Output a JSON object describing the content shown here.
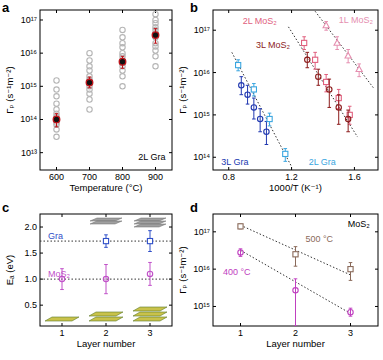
{
  "chart_data": [
    {
      "type": "scatter",
      "title": "a",
      "x_label": "Temperature (°C)",
      "y_label": "Γₚ (s⁻¹m⁻²)",
      "log": "y",
      "xlim": [
        550,
        950
      ],
      "xticks": [
        600,
        700,
        800,
        900
      ],
      "ylim": [
        3000000000000.0,
        2e+17
      ],
      "yticks": [
        {
          "value": 10000000000000.0,
          "label": "10¹³"
        },
        {
          "value": 100000000000000.0,
          "label": "10¹⁴"
        },
        {
          "value": 1000000000000000.0,
          "label": "10¹⁵"
        },
        {
          "value": 1e+16,
          "label": "10¹⁶"
        },
        {
          "value": 1e+17,
          "label": "10¹⁷"
        }
      ],
      "annotations": [
        {
          "text": "2L Gra",
          "color": "#000000"
        }
      ],
      "series": [
        {
          "color": "#b5b5b5",
          "marker": "circle",
          "x": [
            600,
            600,
            600,
            600,
            600,
            600,
            600,
            600,
            600,
            600,
            600,
            600,
            700,
            700,
            700,
            700,
            700,
            700,
            700,
            700,
            700,
            700,
            700,
            700,
            800,
            800,
            800,
            800,
            800,
            800,
            800,
            800,
            800,
            800,
            800,
            800,
            900,
            900,
            900,
            900,
            900,
            900,
            900,
            900,
            900,
            900,
            900,
            900
          ],
          "values": [
            30000000000000.0,
            50000000000000.0,
            70000000000000.0,
            80000000000000.0,
            100000000000000.0,
            120000000000000.0,
            150000000000000.0,
            200000000000000.0,
            300000000000000.0,
            500000000000000.0,
            800000000000000.0,
            1500000000000000.0,
            200000000000000.0,
            400000000000000.0,
            600000000000000.0,
            800000000000000.0,
            1000000000000000.0,
            1300000000000000.0,
            1600000000000000.0,
            2000000000000000.0,
            3000000000000000.0,
            4000000000000000.0,
            6000000000000000.0,
            1e+16,
            1000000000000000.0,
            2000000000000000.0,
            3000000000000000.0,
            4000000000000000.0,
            5000000000000000.0,
            6000000000000000.0,
            8000000000000000.0,
            1e+16,
            1.5e+16,
            2e+16,
            3e+16,
            5e+16,
            4000000000000000.0,
            8000000000000000.0,
            1.2e+16,
            1.6e+16,
            2e+16,
            3e+16,
            4e+16,
            5e+16,
            6e+16,
            8e+16,
            1e+17,
            1.5e+17
          ]
        },
        {
          "color": "#c0141b",
          "marker": "circle-filled",
          "x": [
            600,
            700,
            800,
            900
          ],
          "values": [
            100000000000000.0,
            1300000000000000.0,
            5500000000000000.0,
            3.5e+16
          ],
          "lower": [
            60000000000000.0,
            900000000000000.0,
            3500000000000000.0,
            2e+16
          ],
          "upper": [
            150000000000000.0,
            1900000000000000.0,
            8000000000000000.0,
            5.5e+16
          ]
        }
      ]
    },
    {
      "type": "scatter",
      "title": "b",
      "x_label": "1000/T (K⁻¹)",
      "y_label": "Γₚ (s⁻¹m⁻²)",
      "log": "y",
      "xlim": [
        0.7,
        1.75
      ],
      "xticks": [
        0.8,
        1.2,
        1.6
      ],
      "ylim": [
        50000000000000.0,
        3e+17
      ],
      "yticks": [
        {
          "value": 100000000000000.0,
          "label": "10¹⁴"
        },
        {
          "value": 1000000000000000.0,
          "label": "10¹⁵"
        },
        {
          "value": 1e+16,
          "label": "10¹⁶"
        },
        {
          "value": 1e+17,
          "label": "10¹⁷"
        }
      ],
      "fit_lines": [
        {
          "x": [
            0.82,
            1.2
          ],
          "values": [
            3e+16,
            60000000000000.0
          ]
        },
        {
          "x": [
            1.18,
            1.62
          ],
          "values": [
            1.2e+17,
            300000000000000.0
          ]
        },
        {
          "x": [
            1.35,
            1.72
          ],
          "values": [
            2.8e+17,
            4400000000000000.0
          ]
        }
      ],
      "series": [
        {
          "name": "2L MoS₂",
          "color": "#e0607e",
          "marker": "square",
          "x": [
            1.28,
            1.35,
            1.42,
            1.5,
            1.57
          ],
          "values": [
            5e+16,
            2e+16,
            6000000000000000.0,
            2500000000000000.0,
            1000000000000000.0
          ],
          "lower": [
            3.5e+16,
            1.2e+16,
            3500000000000000.0,
            1400000000000000.0,
            600000000000000.0
          ],
          "upper": [
            7e+16,
            3e+16,
            9000000000000000.0,
            4000000000000000.0,
            1600000000000000.0
          ]
        },
        {
          "name": "1L MoS₂",
          "color": "#e58fb0",
          "marker": "triangle",
          "x": [
            1.42,
            1.49,
            1.56,
            1.63
          ],
          "values": [
            1.3e+17,
            5e+16,
            2.5e+16,
            1.2e+16
          ],
          "lower": [
            1e+17,
            3.5e+16,
            1.7e+16,
            8000000000000000.0
          ],
          "upper": [
            1.6e+17,
            7e+16,
            3.5e+16,
            1.6e+16
          ]
        },
        {
          "name": "3L MoS₂",
          "color": "#8c1c1c",
          "marker": "circle",
          "x": [
            1.3,
            1.37,
            1.44,
            1.5,
            1.56
          ],
          "values": [
            2e+16,
            8000000000000000.0,
            4000000000000000.0,
            1500000000000000.0,
            800000000000000.0
          ],
          "lower": [
            1.3e+16,
            5000000000000000.0,
            1500000000000000.0,
            600000000000000.0,
            400000000000000.0
          ],
          "upper": [
            3e+16,
            1.2e+16,
            7000000000000000.0,
            3000000000000000.0,
            1300000000000000.0
          ]
        },
        {
          "name": "3L Gra",
          "color": "#2038b0",
          "marker": "circle",
          "x": [
            0.88,
            0.92,
            0.96,
            1.0,
            1.04
          ],
          "values": [
            5000000000000000.0,
            3000000000000000.0,
            1500000000000000.0,
            800000000000000.0,
            400000000000000.0
          ],
          "lower": [
            3000000000000000.0,
            1800000000000000.0,
            800000000000000.0,
            400000000000000.0,
            200000000000000.0
          ],
          "upper": [
            8000000000000000.0,
            5000000000000000.0,
            2500000000000000.0,
            1400000000000000.0,
            700000000000000.0
          ]
        },
        {
          "name": "2L Gra",
          "color": "#3aa6e0",
          "marker": "square",
          "x": [
            0.86,
            0.96,
            1.06,
            1.16
          ],
          "values": [
            1.5e+16,
            4000000000000000.0,
            800000000000000.0,
            120000000000000.0
          ],
          "lower": [
            1.1e+16,
            2800000000000000.0,
            550000000000000.0,
            80000000000000.0
          ],
          "upper": [
            2e+16,
            5500000000000000.0,
            1100000000000000.0,
            160000000000000.0
          ]
        }
      ]
    },
    {
      "type": "scatter",
      "title": "c",
      "x_label": "Layer number",
      "y_label": "Eₐ (eV)",
      "xlim": [
        0.5,
        3.5
      ],
      "xticks": [
        1,
        2,
        3
      ],
      "ylim": [
        0.1,
        2.25
      ],
      "yticks": [
        0.5,
        {
          "value": 1,
          "label": "1.0"
        },
        1.5,
        {
          "value": 2,
          "label": "2.0"
        }
      ],
      "fit_lines": [
        {
          "x": [
            0.5,
            3.5
          ],
          "values": [
            1.73,
            1.73
          ]
        },
        {
          "x": [
            0.5,
            3.5
          ],
          "values": [
            1.0,
            1.0
          ]
        }
      ],
      "series": [
        {
          "name": "Gra",
          "color": "#2f4fc8",
          "marker": "square",
          "x": [
            2,
            3
          ],
          "values": [
            1.73,
            1.73
          ],
          "errors": [
            0.12,
            0.2
          ]
        },
        {
          "name": "MoS₂",
          "color": "#c050c8",
          "marker": "circle",
          "x": [
            1,
            2,
            3
          ],
          "values": [
            1.0,
            1.0,
            1.1
          ],
          "errors": [
            0.2,
            0.28,
            0.22
          ]
        }
      ]
    },
    {
      "type": "scatter",
      "title": "d",
      "x_label": "Layer number",
      "y_label": "Γₚ (s⁻¹m⁻²)",
      "log": "y",
      "xlim": [
        0.5,
        3.5
      ],
      "xticks": [
        1,
        2,
        3
      ],
      "ylim": [
        300000000000000.0,
        3e+17
      ],
      "yticks": [
        {
          "value": 1000000000000000.0,
          "label": "10¹⁵"
        },
        {
          "value": 1e+16,
          "label": "10¹⁶"
        },
        {
          "value": 1e+17,
          "label": "10¹⁷"
        }
      ],
      "annotations": [
        {
          "text": "MoS₂",
          "color": "#000000"
        }
      ],
      "fit_lines": [
        {
          "x": [
            1,
            3
          ],
          "values": [
            1.5e+17,
            7000000000000000.0
          ]
        },
        {
          "x": [
            1,
            3
          ],
          "values": [
            3.2e+16,
            650000000000000.0
          ]
        }
      ],
      "series": [
        {
          "name": "500 °C",
          "color": "#8a6a5a",
          "marker": "square",
          "x": [
            1,
            2,
            3
          ],
          "values": [
            1.4e+17,
            2.5e+16,
            1e+16
          ],
          "lower": [
            1.2e+17,
            1.2e+16,
            5000000000000000.0
          ],
          "upper": [
            1.6e+17,
            4e+16,
            1.5e+16
          ]
        },
        {
          "name": "400 °C",
          "color": "#c040c0",
          "marker": "circle",
          "x": [
            1,
            2,
            3
          ],
          "values": [
            2.8e+16,
            2700000000000000.0,
            700000000000000.0
          ],
          "lower": [
            2.2e+16,
            300000000000000.0,
            550000000000000.0
          ],
          "upper": [
            3.5e+16,
            5500000000000000.0,
            900000000000000.0
          ]
        }
      ]
    }
  ]
}
